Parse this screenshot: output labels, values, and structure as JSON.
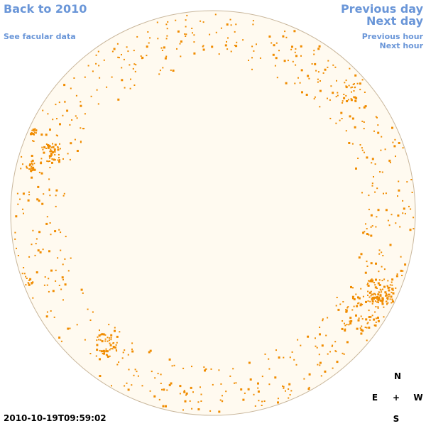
{
  "nav": {
    "back_label": "Back to 2010",
    "facular_label": "See facular data",
    "prev_day_label": "Previous day",
    "next_day_label": "Next day",
    "prev_hour_label": "Previous hour",
    "next_hour_label": "Next hour"
  },
  "timestamp": "2010-10-19T09:59:02",
  "compass": {
    "north": "N",
    "east": "E",
    "center": "+",
    "west": "W",
    "south": "S"
  },
  "colors": {
    "link": "#6a96d8",
    "disk_fill": "#fffaf0",
    "disk_border": "#c9b79c",
    "plage": "#f08c00"
  }
}
